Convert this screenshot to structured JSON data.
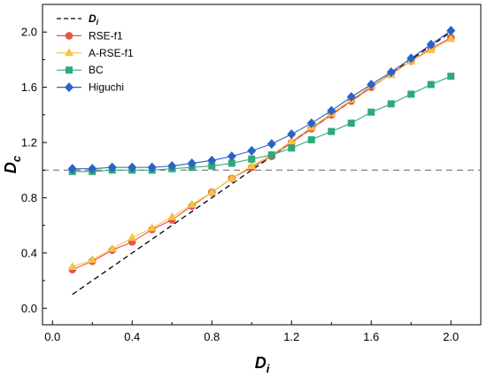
{
  "chart_data": {
    "type": "line",
    "xlabel": {
      "main": "D",
      "sub": "i"
    },
    "ylabel": {
      "main": "D",
      "sub": "c"
    },
    "xlim": [
      -0.05,
      2.15
    ],
    "ylim": [
      -0.12,
      2.2
    ],
    "xticks": [
      0.0,
      0.4,
      0.8,
      1.2,
      1.6,
      2.0
    ],
    "yticks": [
      0.0,
      0.4,
      0.8,
      1.2,
      1.6,
      2.0
    ],
    "xtick_labels": [
      "0.0",
      "0.4",
      "0.8",
      "1.2",
      "1.6",
      "2.0"
    ],
    "ytick_labels": [
      "0.0",
      "0.4",
      "0.8",
      "1.2",
      "1.6",
      "2.0"
    ],
    "reference_line": {
      "y": 1.0,
      "color": "#808080",
      "style": "dashed"
    },
    "legend_position": "top-left",
    "x": [
      0.1,
      0.2,
      0.3,
      0.4,
      0.5,
      0.6,
      0.7,
      0.8,
      0.9,
      1.0,
      1.1,
      1.2,
      1.3,
      1.4,
      1.5,
      1.6,
      1.7,
      1.8,
      1.9,
      2.0
    ],
    "series": [
      {
        "name": "Di",
        "label_main": "D",
        "label_sub": "i",
        "color": "#000000",
        "style": "dashed",
        "marker": "none",
        "values": [
          0.1,
          0.2,
          0.3,
          0.4,
          0.5,
          0.6,
          0.7,
          0.8,
          0.9,
          1.0,
          1.1,
          1.2,
          1.3,
          1.4,
          1.5,
          1.6,
          1.7,
          1.8,
          1.9,
          2.0
        ]
      },
      {
        "name": "RSE-f1",
        "color": "#e8534a",
        "style": "solid",
        "marker": "circle",
        "values": [
          0.28,
          0.34,
          0.42,
          0.48,
          0.57,
          0.64,
          0.74,
          0.84,
          0.94,
          1.02,
          1.1,
          1.2,
          1.3,
          1.4,
          1.5,
          1.6,
          1.7,
          1.79,
          1.88,
          1.96
        ]
      },
      {
        "name": "A-RSE-f1",
        "color": "#f5c343",
        "style": "solid",
        "marker": "triangle",
        "values": [
          0.3,
          0.35,
          0.43,
          0.51,
          0.58,
          0.66,
          0.75,
          0.84,
          0.94,
          1.03,
          1.11,
          1.21,
          1.31,
          1.41,
          1.51,
          1.61,
          1.69,
          1.79,
          1.87,
          1.95
        ]
      },
      {
        "name": "BC",
        "color": "#2eaa7a",
        "style": "solid",
        "marker": "square",
        "values": [
          0.99,
          0.99,
          1.0,
          1.0,
          1.0,
          1.01,
          1.02,
          1.03,
          1.05,
          1.08,
          1.11,
          1.16,
          1.22,
          1.28,
          1.34,
          1.42,
          1.48,
          1.55,
          1.62,
          1.68
        ]
      },
      {
        "name": "Higuchi",
        "color": "#2a63c5",
        "style": "solid",
        "marker": "diamond",
        "values": [
          1.01,
          1.01,
          1.02,
          1.02,
          1.02,
          1.03,
          1.05,
          1.07,
          1.1,
          1.14,
          1.19,
          1.26,
          1.34,
          1.43,
          1.53,
          1.62,
          1.71,
          1.81,
          1.91,
          2.01
        ]
      }
    ]
  }
}
